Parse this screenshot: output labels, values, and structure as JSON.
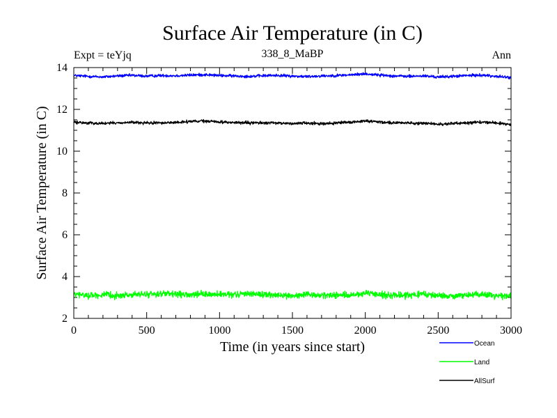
{
  "chart_data": {
    "type": "line",
    "title": "Surface Air Temperature (in C)",
    "subtitle": "338_8_MaBP",
    "left_label": "Expt = teYjq",
    "right_label": "Ann",
    "xlabel": "Time (in years since start)",
    "ylabel": "Surface Air Temperature (in C)",
    "xlim": [
      0,
      3000
    ],
    "ylim": [
      2,
      14
    ],
    "xticks": [
      0,
      500,
      1000,
      1500,
      2000,
      2500,
      3000
    ],
    "yticks": [
      2,
      4,
      6,
      8,
      10,
      12,
      14
    ],
    "legend_position": "bottom-right, below plot",
    "x": [
      0,
      100,
      200,
      300,
      400,
      500,
      600,
      700,
      800,
      900,
      1000,
      1100,
      1200,
      1300,
      1400,
      1500,
      1600,
      1700,
      1800,
      1900,
      2000,
      2100,
      2200,
      2300,
      2400,
      2500,
      2600,
      2700,
      2800,
      2900,
      3000
    ],
    "series": [
      {
        "name": "Ocean",
        "color": "#0000ff",
        "noise": 0.06,
        "values": [
          13.62,
          13.58,
          13.55,
          13.6,
          13.63,
          13.59,
          13.62,
          13.61,
          13.64,
          13.66,
          13.62,
          13.6,
          13.58,
          13.61,
          13.63,
          13.59,
          13.57,
          13.6,
          13.62,
          13.65,
          13.7,
          13.64,
          13.6,
          13.58,
          13.6,
          13.55,
          13.58,
          13.62,
          13.64,
          13.58,
          13.52
        ]
      },
      {
        "name": "Land",
        "color": "#00ff00",
        "noise": 0.13,
        "values": [
          3.15,
          3.1,
          3.12,
          3.08,
          3.13,
          3.15,
          3.18,
          3.14,
          3.12,
          3.16,
          3.14,
          3.12,
          3.2,
          3.14,
          3.1,
          3.08,
          3.12,
          3.1,
          3.12,
          3.1,
          3.18,
          3.15,
          3.1,
          3.12,
          3.14,
          3.1,
          3.05,
          3.12,
          3.15,
          3.1,
          3.05
        ]
      },
      {
        "name": "AllSurf",
        "color": "#000000",
        "noise": 0.06,
        "values": [
          11.38,
          11.35,
          11.33,
          11.35,
          11.38,
          11.34,
          11.36,
          11.37,
          11.42,
          11.44,
          11.4,
          11.37,
          11.35,
          11.36,
          11.34,
          11.33,
          11.35,
          11.32,
          11.34,
          11.38,
          11.45,
          11.4,
          11.36,
          11.35,
          11.34,
          11.28,
          11.32,
          11.36,
          11.4,
          11.35,
          11.27
        ]
      }
    ]
  }
}
